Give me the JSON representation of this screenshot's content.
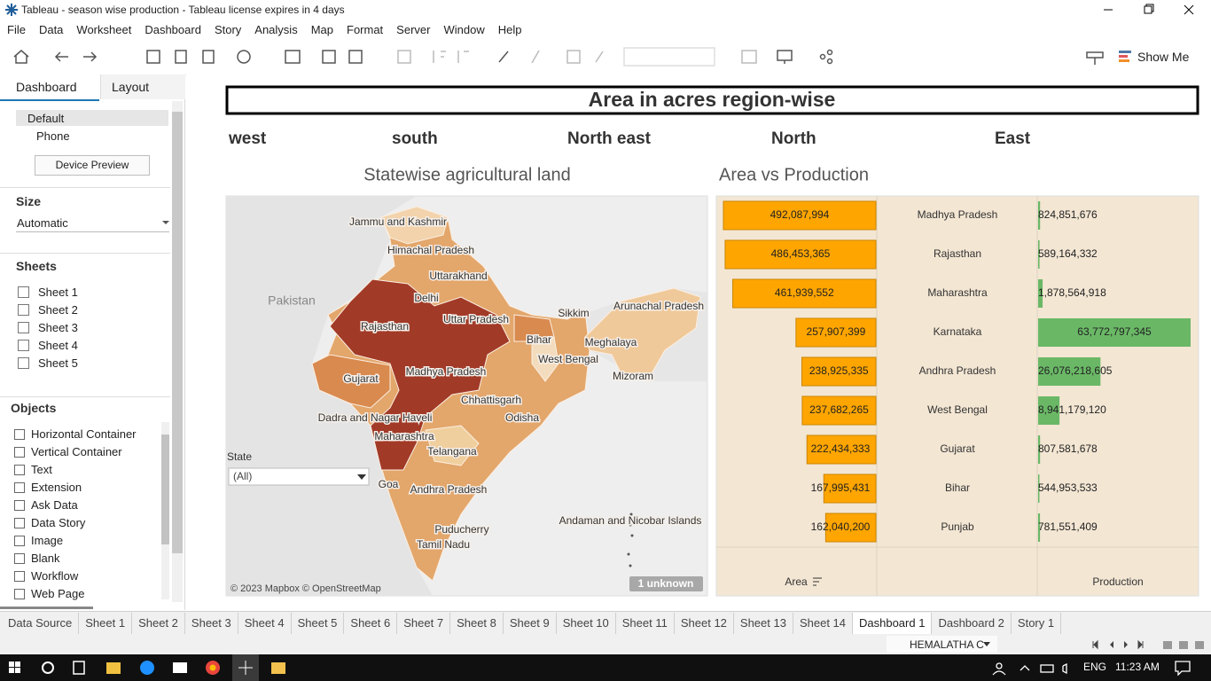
{
  "window": {
    "title": "Tableau - season wise production - Tableau license expires in 4 days"
  },
  "menu": [
    "File",
    "Data",
    "Worksheet",
    "Dashboard",
    "Story",
    "Analysis",
    "Map",
    "Format",
    "Server",
    "Window",
    "Help"
  ],
  "toolbar": {
    "show_me": "Show Me"
  },
  "side_panel": {
    "tabs": [
      "Dashboard",
      "Layout"
    ],
    "devices": [
      "Default",
      "Phone"
    ],
    "device_preview": "Device Preview",
    "size_heading": "Size",
    "size_value": "Automatic",
    "sheets_heading": "Sheets",
    "sheets": [
      "Sheet 1",
      "Sheet 2",
      "Sheet 3",
      "Sheet 4",
      "Sheet 5"
    ],
    "objects_heading": "Objects",
    "objects": [
      "Horizontal Container",
      "Vertical Container",
      "Text",
      "Extension",
      "Ask Data",
      "Data Story",
      "Image",
      "Blank",
      "Workflow",
      "Web Page"
    ]
  },
  "dashboard": {
    "title": "Area in acres region-wise",
    "regions": [
      "west",
      "south",
      "North east",
      "North",
      "East"
    ],
    "map": {
      "title": "Statewise agricultural land",
      "country_label": "Pakistan",
      "labels": [
        "Jammu and Kashmir",
        "Himachal Pradesh",
        "Uttarakhand",
        "Delhi",
        "Uttar Pradesh",
        "Rajasthan",
        "Sikkim",
        "Arunachal Pradesh",
        "Bihar",
        "Meghalaya",
        "West Bengal",
        "Mizoram",
        "Gujarat",
        "Madhya Pradesh",
        "Chhattisgarh",
        "Odisha",
        "Dadra and Nagar Haveli",
        "Maharashtra",
        "Telangana",
        "Goa",
        "Andhra Pradesh",
        "Puducherry",
        "Tamil Nadu",
        "Andaman and Nicobar Islands"
      ],
      "filter_label": "State",
      "filter_value": "(All)",
      "attribution": "© 2023 Mapbox © OpenStreetMap",
      "unknown": "1 unknown"
    },
    "chart_data": {
      "type": "bar",
      "title": "Area vs Production",
      "categories": [
        "Madhya Pradesh",
        "Rajasthan",
        "Maharashtra",
        "Karnataka",
        "Andhra Pradesh",
        "West Bengal",
        "Gujarat",
        "Bihar",
        "Punjab"
      ],
      "series": [
        {
          "name": "Area",
          "color": "#ffa500",
          "values": [
            492087994,
            486453365,
            461939552,
            257907399,
            238925335,
            237682265,
            222434333,
            167995431,
            162040200
          ],
          "value_labels": [
            "492,087,994",
            "486,453,365",
            "461,939,552",
            "257,907,399",
            "238,925,335",
            "237,682,265",
            "222,434,333",
            "167,995,431",
            "162,040,200"
          ]
        },
        {
          "name": "Production",
          "color": "#6ab866",
          "values": [
            824851676,
            589164332,
            1878564918,
            63772797345,
            26076218605,
            8941179120,
            807581678,
            544953533,
            781551409
          ],
          "value_labels": [
            "824,851,676",
            "589,164,332",
            "1,878,564,918",
            "63,772,797,345",
            "26,076,218,605",
            "8,941,179,120",
            "807,581,678",
            "544,953,533",
            "781,551,409"
          ]
        }
      ]
    }
  },
  "tabs": [
    "Data Source",
    "Sheet 1",
    "Sheet 2",
    "Sheet 3",
    "Sheet 4",
    "Sheet 5",
    "Sheet 6",
    "Sheet 7",
    "Sheet 8",
    "Sheet 9",
    "Sheet 10",
    "Sheet 11",
    "Sheet 12",
    "Sheet 13",
    "Sheet 14",
    "Dashboard 1",
    "Dashboard 2",
    "Story 1"
  ],
  "active_tab": "Dashboard 1",
  "status": {
    "user": "HEMALATHA C"
  },
  "taskbar": {
    "language": "ENG",
    "time": "11:23 AM"
  }
}
